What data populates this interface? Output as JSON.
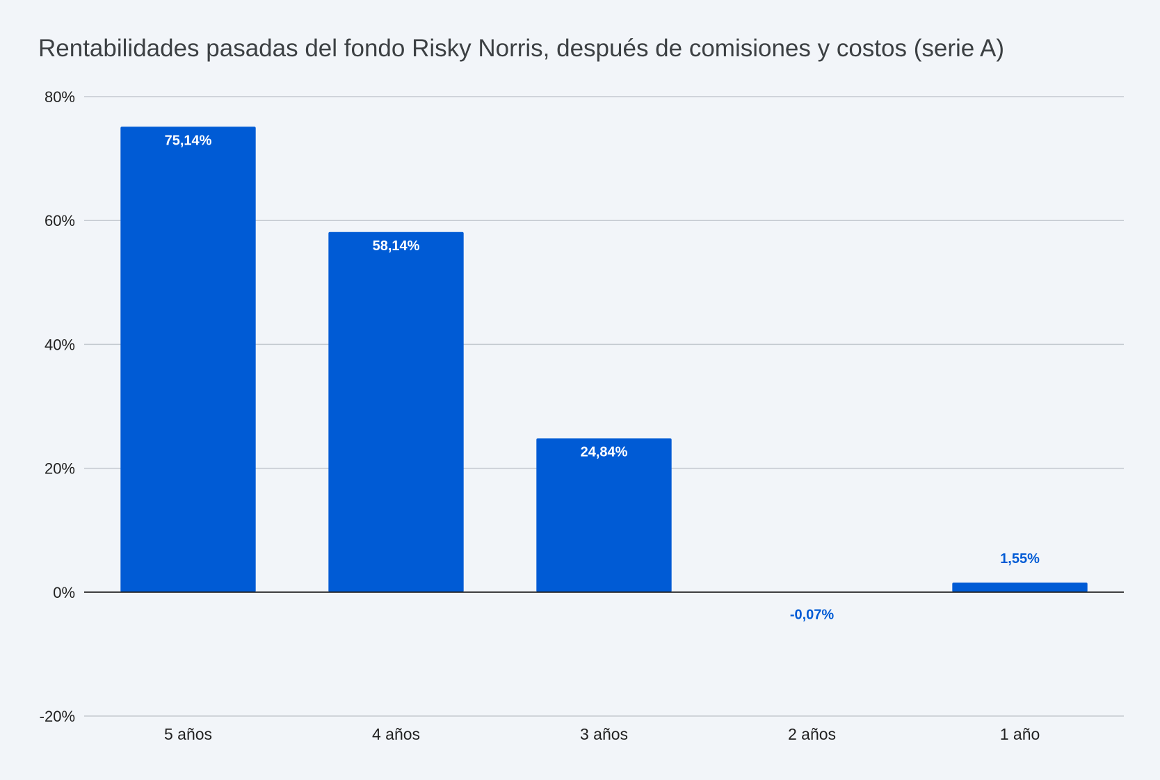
{
  "chart_data": {
    "type": "bar",
    "title": "Rentabilidades pasadas del fondo Risky Norris, después de comisiones y costos (serie A)",
    "xlabel": "",
    "ylabel": "",
    "categories": [
      "5 años",
      "4 años",
      "3 años",
      "2 años",
      "1 año"
    ],
    "values": [
      75.14,
      58.14,
      24.84,
      -0.07,
      1.55
    ],
    "data_labels": [
      "75,14%",
      "58,14%",
      "24,84%",
      "-0,07%",
      "1,55%"
    ],
    "ylim": [
      -20,
      80
    ],
    "yticks": [
      80,
      60,
      40,
      20,
      0,
      -20
    ],
    "ytick_labels": [
      "80%",
      "60%",
      "40%",
      "20%",
      "0%",
      "-20%"
    ],
    "grid": true,
    "legend": "none",
    "colors": {
      "bar": "#005bd5",
      "label_inside": "#ffffff",
      "label_outside": "#005bd5",
      "title": "#3c4043",
      "grid": "#c4c9d0"
    }
  }
}
